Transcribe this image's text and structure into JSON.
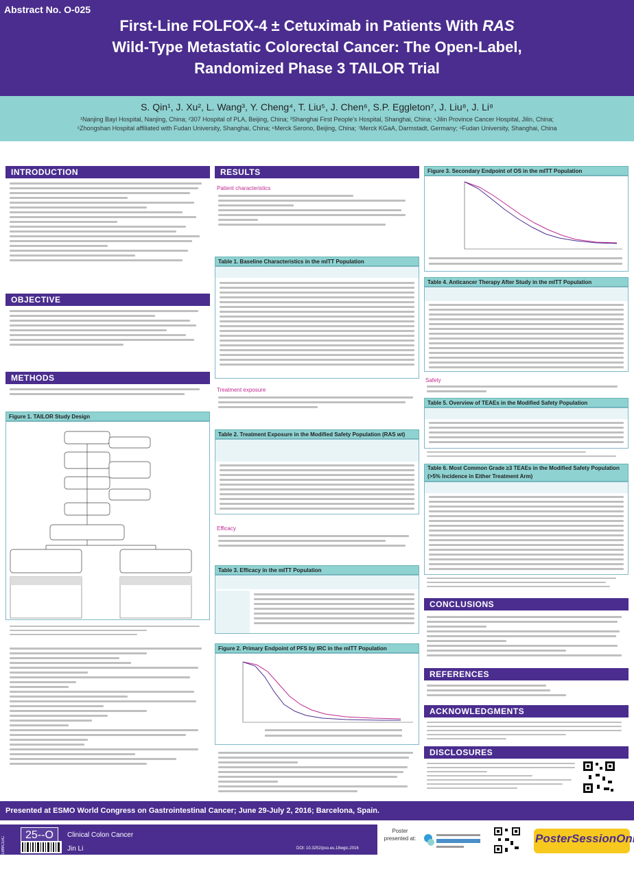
{
  "header": {
    "abstract_no": "Abstract No. O-025",
    "title_line1_a": "First-Line FOLFOX-4 ± Cetuximab in Patients With ",
    "title_line1_b": "RAS",
    "title_line2": "Wild-Type Metastatic Colorectal Cancer: The Open-Label,",
    "title_line3": "Randomized Phase 3 TAILOR Trial",
    "authors": "S. Qin¹, J. Xu², L. Wang³, Y. Cheng⁴, T. Liu⁵, J. Chen⁶, S.P. Eggleton⁷, J. Liu⁸, J. Li⁸",
    "affiliations_1": "¹Nanjing Bayi Hospital, Nanjing, China; ²307 Hospital of PLA, Beijing, China; ³Shanghai First People's Hospital, Shanghai, China; ⁴Jilin Province Cancer Hospital, Jilin, China;",
    "affiliations_2": "⁵Zhongshan Hospital affiliated with Fudan University, Shanghai, China; ⁶Merck Serono, Beijing, China; ⁷Merck KGaA, Darmstadt, Germany; ⁸Fudan University, Shanghai, China"
  },
  "sections": {
    "introduction": "INTRODUCTION",
    "objective": "OBJECTIVE",
    "methods": "METHODS",
    "results": "RESULTS",
    "conclusions": "CONCLUSIONS",
    "references": "REFERENCES",
    "acknowledgments": "ACKNOWLEDGMENTS",
    "disclosures": "DISCLOSURES"
  },
  "subheads": {
    "patient_characteristics": "Patient characteristics",
    "treatment_exposure": "Treatment exposure",
    "efficacy": "Efficacy",
    "safety": "Safety"
  },
  "figures": {
    "fig1": "Figure 1. TAILOR Study Design",
    "fig2": "Figure 2. Primary Endpoint of PFS by IRC in the mITT Population",
    "fig3": "Figure 3. Secondary Endpoint of OS in the mITT Population"
  },
  "tables": {
    "t1": "Table 1. Baseline Characteristics in the mITT Population",
    "t2": "Table 2. Treatment Exposure in the Modified Safety Population (RAS wt)",
    "t3": "Table 3. Efficacy in the mITT Population",
    "t4": "Table 4. Anticancer Therapy After Study in the mITT Population",
    "t5": "Table 5. Overview of TEAEs in the Modified Safety Population",
    "t6": "Table 6. Most Common Grade ≥3 TEAEs in the Modified Safety Population (>5% Incidence in Either Treatment Arm)"
  },
  "footer": {
    "presented": "Presented at ESMO World Congress on Gastrointestinal Cancer; June 29-July 2, 2016; Barcelona, Spain.",
    "code": "25--O",
    "side_code": "18WCGIC",
    "category": "Clinical Colon Cancer",
    "author": "Jin Li",
    "doi": "DOI: 10.3252/pso.eu.18wgic.2016",
    "poster_presented": "Poster presented at:",
    "brand": "PosterSessionOnline"
  },
  "colors": {
    "purple": "#4a2d8e",
    "teal": "#8fd2d2",
    "magenta": "#c0288f",
    "gold": "#f7c81d"
  }
}
